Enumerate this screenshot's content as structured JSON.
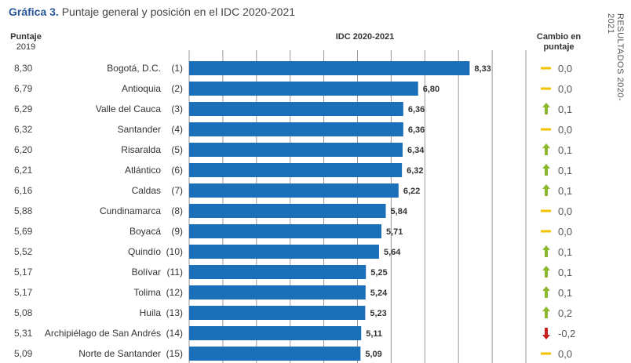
{
  "title_prefix": "Gráfica 3.",
  "title": "Puntaje general y posición en el IDC 2020-2021",
  "side_label": "RESULTADOS 2020- 2021",
  "colors": {
    "bar": "#1b6fb8",
    "up": "#8cb82d",
    "down": "#c8201f",
    "flat": "#f2c200"
  },
  "chart_data": {
    "type": "bar",
    "orientation": "horizontal",
    "title": "IDC 2020-2021",
    "xlim": [
      0,
      10
    ],
    "grid": true,
    "left_column_header": [
      "Puntaje",
      "2019"
    ],
    "right_column_header": [
      "Cambio en",
      "puntaje"
    ],
    "categories": [
      "Bogotá, D.C.",
      "Antioquia",
      "Valle del Cauca",
      "Santander",
      "Risaralda",
      "Atlántico",
      "Caldas",
      "Cundinamarca",
      "Boyacá",
      "Quindío",
      "Bolívar",
      "Tolima",
      "Huila",
      "Archipiélago de San Andrés",
      "Norte de Santander"
    ],
    "ranks": [
      "(1)",
      "(2)",
      "(3)",
      "(4)",
      "(5)",
      "(6)",
      "(7)",
      "(8)",
      "(9)",
      "(10)",
      "(11)",
      "(12)",
      "(13)",
      "(14)",
      "(15)"
    ],
    "values": [
      8.33,
      6.8,
      6.36,
      6.36,
      6.34,
      6.32,
      6.22,
      5.84,
      5.71,
      5.64,
      5.25,
      5.24,
      5.23,
      5.11,
      5.09
    ],
    "value_labels": [
      "8,33",
      "6,80",
      "6,36",
      "6,36",
      "6,34",
      "6,32",
      "6,22",
      "5,84",
      "5,71",
      "5,64",
      "5,25",
      "5,24",
      "5,23",
      "5,11",
      "5,09"
    ],
    "score_2019": [
      "8,30",
      "6,79",
      "6,29",
      "6,32",
      "6,20",
      "6,21",
      "6,16",
      "5,88",
      "5,69",
      "5,52",
      "5,17",
      "5,17",
      "5,08",
      "5,31",
      "5,09"
    ],
    "change": [
      "0,0",
      "0,0",
      "0,1",
      "0,0",
      "0,1",
      "0,1",
      "0,1",
      "0,0",
      "0,0",
      "0,1",
      "0,1",
      "0,1",
      "0,2",
      "-0,2",
      "0,0"
    ],
    "change_direction": [
      "flat",
      "flat",
      "up",
      "flat",
      "up",
      "up",
      "up",
      "flat",
      "flat",
      "up",
      "up",
      "up",
      "up",
      "down",
      "flat"
    ]
  }
}
